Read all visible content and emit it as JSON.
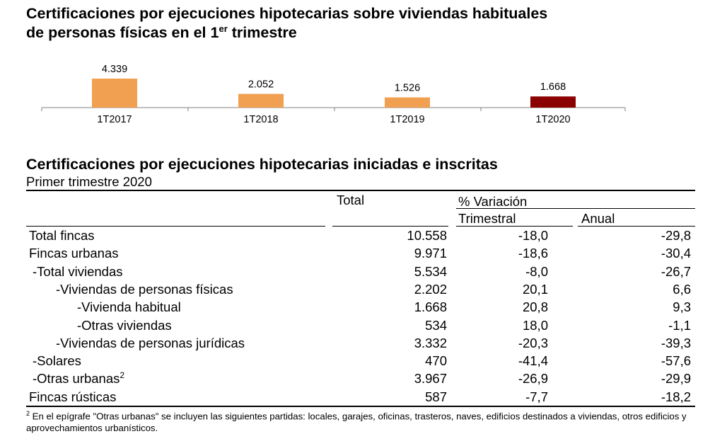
{
  "chart_title": {
    "line1": "Certificaciones por ejecuciones hipotecarias sobre viviendas habituales",
    "line2_prefix": "de personas físicas en el 1",
    "line2_sup": "er",
    "line2_suffix": " trimestre"
  },
  "chart_data": {
    "type": "bar",
    "title": "Certificaciones por ejecuciones hipotecarias sobre viviendas habituales de personas físicas en el 1er trimestre",
    "categories": [
      "1T2017",
      "1T2018",
      "1T2019",
      "1T2020"
    ],
    "values": [
      4339,
      2052,
      1526,
      1668
    ],
    "value_labels": [
      "4.339",
      "2.052",
      "1.526",
      "1.668"
    ],
    "colors": [
      "#F0A050",
      "#F0A050",
      "#F0A050",
      "#8B0000"
    ],
    "xlabel": "",
    "ylabel": "",
    "ylim": [
      0,
      4339
    ],
    "grid": false,
    "legend": "none"
  },
  "table": {
    "title": "Certificaciones por ejecuciones hipotecarias iniciadas e inscritas",
    "period": "Primer trimestre 2020",
    "col_total": "Total",
    "col_variation": "% Variación",
    "col_quarterly": "Trimestral",
    "col_annual": "Anual",
    "rows": [
      {
        "label": "Total fincas",
        "total": "10.558",
        "quarterly": "-18,0",
        "annual": "-29,8"
      },
      {
        "label": "Fincas urbanas",
        "total": "9.971",
        "quarterly": "-18,6",
        "annual": "-30,4"
      },
      {
        "label": "-Total viviendas",
        "total": "5.534",
        "quarterly": "-8,0",
        "annual": "-26,7"
      },
      {
        "label": "-Viviendas de personas físicas",
        "total": "2.202",
        "quarterly": "20,1",
        "annual": "6,6"
      },
      {
        "label": "-Vivienda habitual",
        "total": "1.668",
        "quarterly": "20,8",
        "annual": "9,3"
      },
      {
        "label": "-Otras viviendas",
        "total": "534",
        "quarterly": "18,0",
        "annual": "-1,1"
      },
      {
        "label": "-Viviendas de personas jurídicas",
        "total": "3.332",
        "quarterly": "-20,3",
        "annual": "-39,3"
      },
      {
        "label": "-Solares",
        "total": "470",
        "quarterly": "-41,4",
        "annual": "-57,6"
      },
      {
        "label": "-Otras urbanas",
        "label_sup": "2",
        "total": "3.967",
        "quarterly": "-26,9",
        "annual": "-29,9"
      },
      {
        "label": "Fincas rústicas",
        "total": "587",
        "quarterly": "-7,7",
        "annual": "-18,2"
      }
    ]
  },
  "footnote": {
    "sup": "2",
    "text": " En el epígrafe \"Otras urbanas\" se incluyen las siguientes partidas: locales, garajes, oficinas, trasteros, naves, edificios destinados a viviendas, otros edificios y aprovechamientos urbanísticos."
  }
}
